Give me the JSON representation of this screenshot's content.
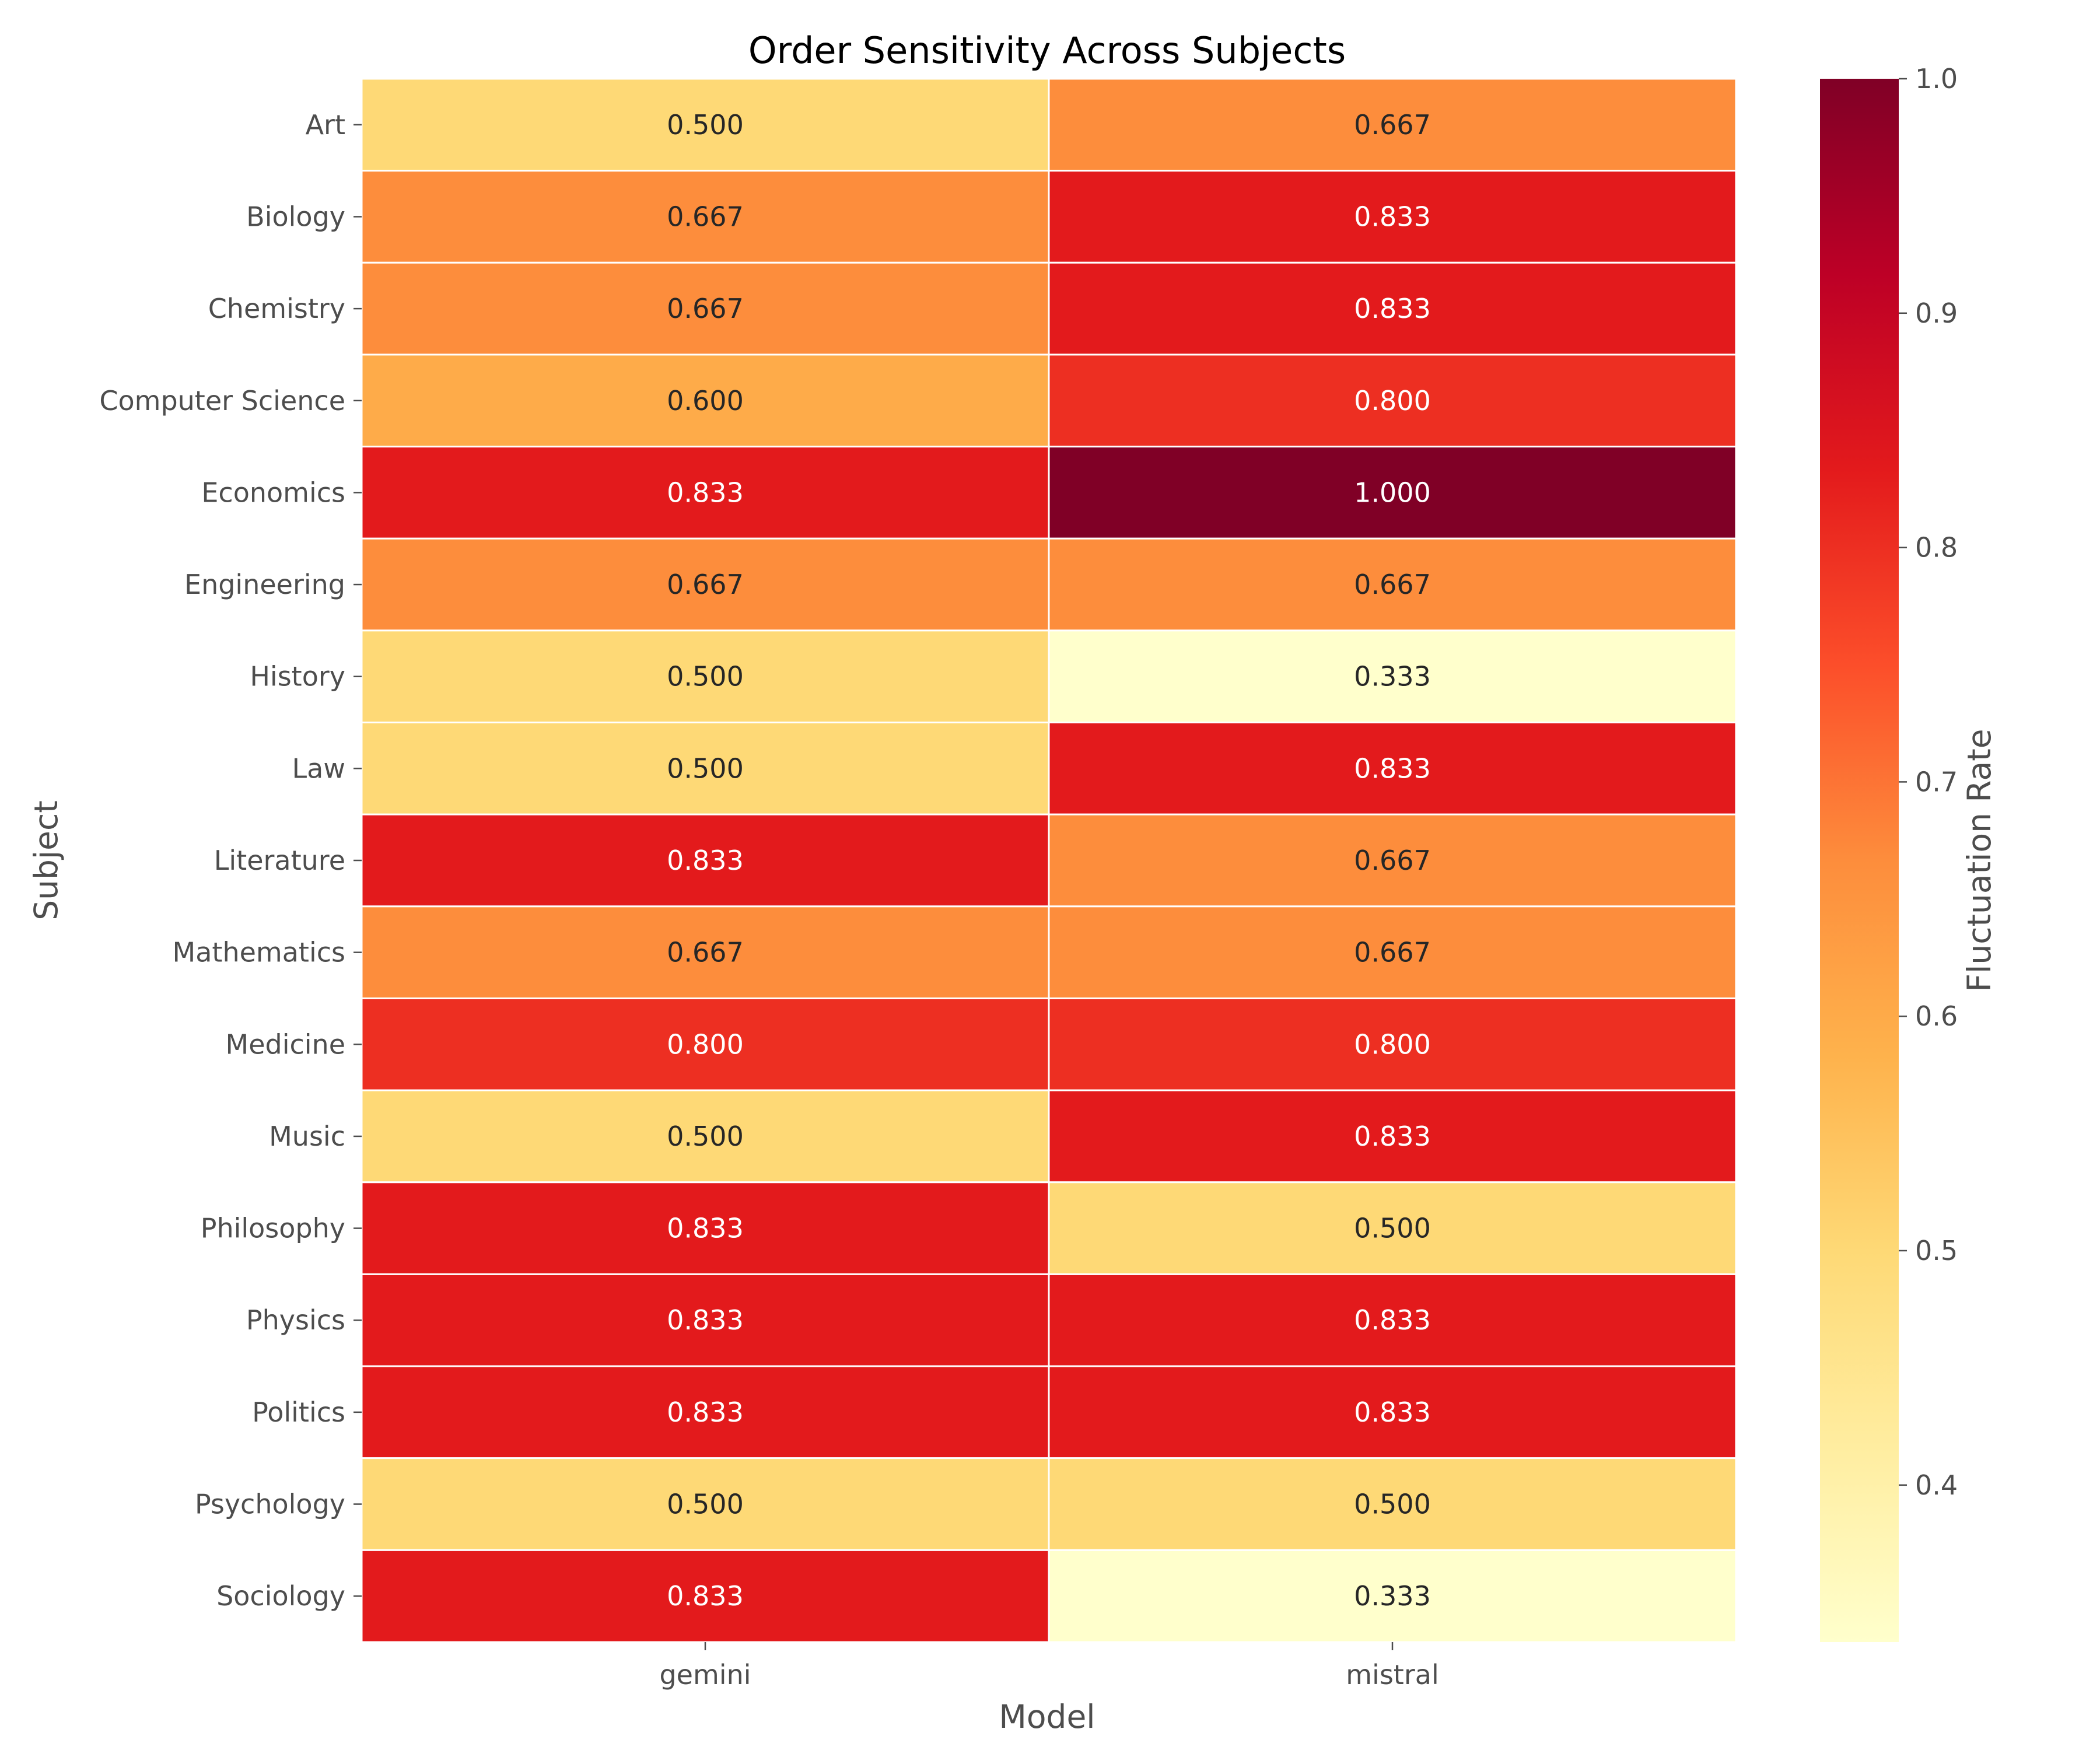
{
  "chart_data": {
    "type": "heatmap",
    "title": "Order Sensitivity Across Subjects",
    "xlabel": "Model",
    "ylabel": "Subject",
    "colorbar_label": "Fluctuation Rate",
    "colormap": "YlOrRd",
    "vmin": 0.333,
    "vmax": 1.0,
    "colorbar_ticks": [
      "0.4",
      "0.5",
      "0.6",
      "0.7",
      "0.8",
      "0.9",
      "1.0"
    ],
    "columns": [
      "gemini",
      "mistral"
    ],
    "rows": [
      "Art",
      "Biology",
      "Chemistry",
      "Computer Science",
      "Economics",
      "Engineering",
      "History",
      "Law",
      "Literature",
      "Mathematics",
      "Medicine",
      "Music",
      "Philosophy",
      "Physics",
      "Politics",
      "Psychology",
      "Sociology"
    ],
    "values": [
      [
        0.5,
        0.667
      ],
      [
        0.667,
        0.833
      ],
      [
        0.667,
        0.833
      ],
      [
        0.6,
        0.8
      ],
      [
        0.833,
        1.0
      ],
      [
        0.667,
        0.667
      ],
      [
        0.5,
        0.333
      ],
      [
        0.5,
        0.833
      ],
      [
        0.833,
        0.667
      ],
      [
        0.667,
        0.667
      ],
      [
        0.8,
        0.8
      ],
      [
        0.5,
        0.833
      ],
      [
        0.833,
        0.5
      ],
      [
        0.833,
        0.833
      ],
      [
        0.833,
        0.833
      ],
      [
        0.5,
        0.5
      ],
      [
        0.833,
        0.333
      ]
    ],
    "cell_labels": [
      [
        "0.500",
        "0.667"
      ],
      [
        "0.667",
        "0.833"
      ],
      [
        "0.667",
        "0.833"
      ],
      [
        "0.600",
        "0.800"
      ],
      [
        "0.833",
        "1.000"
      ],
      [
        "0.667",
        "0.667"
      ],
      [
        "0.500",
        "0.333"
      ],
      [
        "0.500",
        "0.833"
      ],
      [
        "0.833",
        "0.667"
      ],
      [
        "0.667",
        "0.667"
      ],
      [
        "0.800",
        "0.800"
      ],
      [
        "0.500",
        "0.833"
      ],
      [
        "0.833",
        "0.500"
      ],
      [
        "0.833",
        "0.833"
      ],
      [
        "0.833",
        "0.833"
      ],
      [
        "0.500",
        "0.500"
      ],
      [
        "0.833",
        "0.333"
      ]
    ]
  }
}
